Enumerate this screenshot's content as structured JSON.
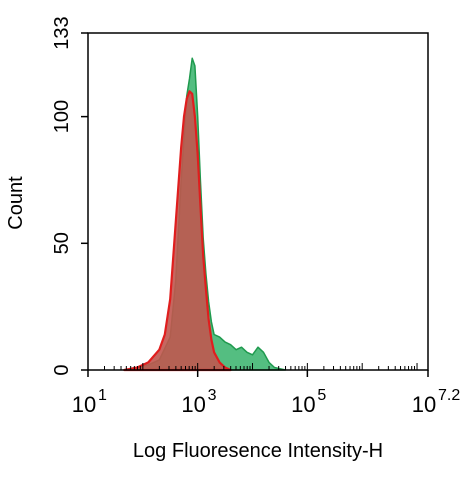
{
  "chart_data": {
    "type": "area",
    "xlabel": "Log Fluoresence Intensity-H",
    "ylabel": "Count",
    "x_scale": "log10",
    "xlim": [
      10,
      15848931.9
    ],
    "ylim": [
      0,
      133
    ],
    "x_ticks": [
      {
        "base": "10",
        "exp": "1",
        "value": 10
      },
      {
        "base": "10",
        "exp": "3",
        "value": 1000
      },
      {
        "base": "10",
        "exp": "5",
        "value": 100000
      },
      {
        "base": "10",
        "exp": "7.2",
        "value": 15848931.9
      }
    ],
    "y_ticks": [
      "0",
      "50",
      "100",
      "133"
    ],
    "grid": false,
    "series": [
      {
        "fill": "#36b36b",
        "stroke": "#1f9a4e",
        "x": [
          46,
          79,
          126,
          200,
          316,
          398,
          501,
          631,
          708,
          794,
          891,
          1000,
          1122,
          1259,
          1413,
          1585,
          1778,
          1995,
          2512,
          3162,
          3981,
          5012,
          6310,
          7943,
          10000,
          12589,
          15849,
          19953,
          25119,
          39811
        ],
        "y": [
          0,
          1,
          2,
          4,
          13,
          35,
          75,
          108,
          115,
          123,
          120,
          100,
          75,
          52,
          38,
          27,
          19,
          14,
          13,
          11,
          10,
          8,
          9,
          7,
          6,
          9,
          7,
          3,
          1,
          0
        ]
      },
      {
        "fill": "#c0564f",
        "stroke": "#e01e1e",
        "x": [
          46,
          79,
          126,
          200,
          251,
          316,
          398,
          501,
          562,
          631,
          708,
          794,
          891,
          1000,
          1122,
          1259,
          1413,
          1585,
          1778,
          1995,
          2512,
          3162,
          3981
        ],
        "y": [
          0,
          1,
          3,
          8,
          14,
          28,
          58,
          88,
          100,
          107,
          110,
          109,
          100,
          85,
          65,
          45,
          32,
          20,
          12,
          7,
          3,
          1,
          0
        ]
      }
    ]
  }
}
